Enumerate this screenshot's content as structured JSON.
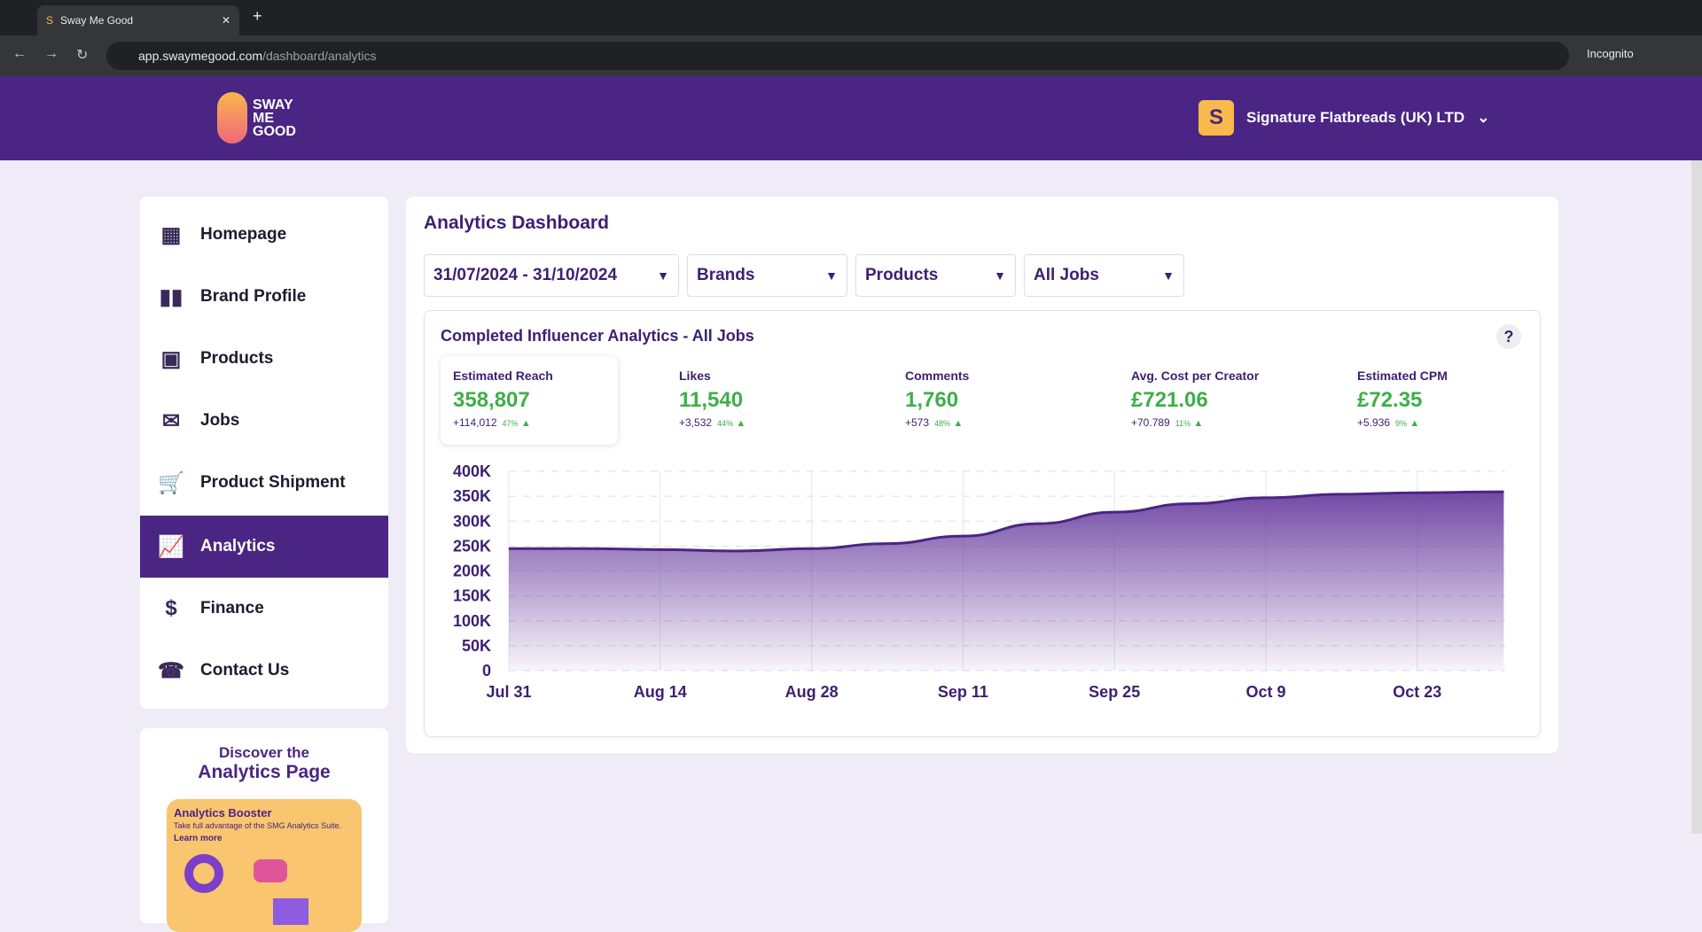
{
  "browser": {
    "tab_title": "Sway Me Good",
    "url_host": "app.swaymegood.com",
    "url_path": "/dashboard/analytics",
    "incognito": "Incognito"
  },
  "header": {
    "logo": "SWAY ME GOOD",
    "logo_lines": [
      "SWAY",
      "ME",
      "GOOD"
    ],
    "account_initial": "S",
    "account_name": "Signature Flatbreads (UK) LTD"
  },
  "sidebar": {
    "items": [
      {
        "label": "Homepage",
        "icon": "dashboard-icon"
      },
      {
        "label": "Brand Profile",
        "icon": "brand-icon"
      },
      {
        "label": "Products",
        "icon": "products-icon"
      },
      {
        "label": "Jobs",
        "icon": "envelope-icon"
      },
      {
        "label": "Product Shipment",
        "icon": "cart-icon"
      },
      {
        "label": "Analytics",
        "icon": "analytics-icon",
        "active": true
      },
      {
        "label": "Finance",
        "icon": "finance-icon"
      },
      {
        "label": "Contact Us",
        "icon": "headset-icon"
      }
    ]
  },
  "promo": {
    "line1": "Discover the",
    "line2": "Analytics Page",
    "card_title": "Analytics Booster",
    "card_text": "Take full advantage of the SMG Analytics Suite.",
    "card_link": "Learn more"
  },
  "main": {
    "title": "Analytics Dashboard",
    "filters": {
      "date": "31/07/2024 - 31/10/2024",
      "brands": "Brands",
      "products": "Products",
      "jobs": "All Jobs"
    },
    "panel_title": "Completed Influencer Analytics - All Jobs",
    "help": "?",
    "metrics": [
      {
        "label": "Estimated Reach",
        "value": "358,807",
        "delta": "+114,012",
        "pct": "47%"
      },
      {
        "label": "Likes",
        "value": "11,540",
        "delta": "+3,532",
        "pct": "44%"
      },
      {
        "label": "Comments",
        "value": "1,760",
        "delta": "+573",
        "pct": "48%"
      },
      {
        "label": "Avg. Cost per Creator",
        "value": "£721.06",
        "delta": "+70.789",
        "pct": "11%"
      },
      {
        "label": "Estimated CPM",
        "value": "£72.35",
        "delta": "+5.936",
        "pct": "9%"
      }
    ]
  },
  "colors": {
    "brand": "#4a2583",
    "positive": "#3fae4a",
    "accent": "#f9b94c"
  },
  "chart_data": {
    "type": "area",
    "title": "Estimated Reach",
    "xlabel": "",
    "ylabel": "",
    "ylim": [
      0,
      400000
    ],
    "yticks": [
      "0",
      "50K",
      "100K",
      "150K",
      "200K",
      "250K",
      "300K",
      "350K",
      "400K"
    ],
    "xticks": [
      "Jul 31",
      "Aug 14",
      "Aug 28",
      "Sep 11",
      "Sep 25",
      "Oct 9",
      "Oct 23"
    ],
    "x_days": [
      0,
      7,
      14,
      21,
      28,
      35,
      42,
      49,
      56,
      63,
      70,
      77,
      84,
      92
    ],
    "values": [
      245000,
      245000,
      243000,
      240000,
      245000,
      255000,
      270000,
      295000,
      318000,
      335000,
      347000,
      354000,
      357000,
      359000
    ],
    "grid": true
  }
}
